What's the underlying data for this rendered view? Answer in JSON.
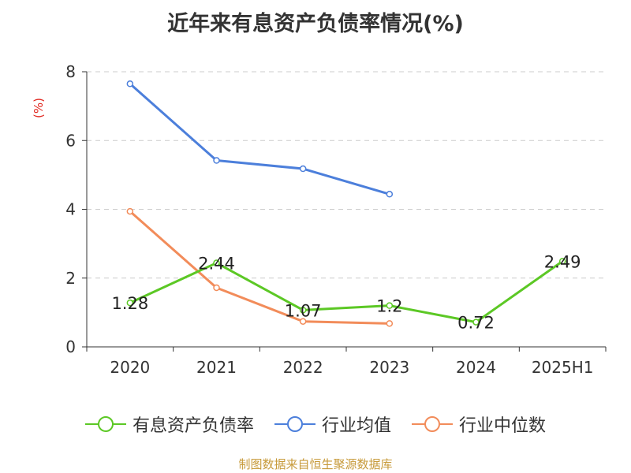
{
  "title": "近年来有息资产负债率情况(%)",
  "unit_label": "(%)",
  "source": "制图数据来自恒生聚源数据库",
  "chart_data": {
    "type": "line",
    "categories": [
      "2020",
      "2021",
      "2022",
      "2023",
      "2024",
      "2025H1"
    ],
    "ylim": [
      0,
      8
    ],
    "yticks": [
      0,
      2,
      4,
      6,
      8
    ],
    "grid": true,
    "legend_position": "bottom",
    "series": [
      {
        "name": "有息资产负债率",
        "color": "#5cc825",
        "values": [
          1.28,
          2.44,
          1.07,
          1.2,
          0.72,
          2.49
        ],
        "labels": [
          "1.28",
          "2.44",
          "1.07",
          "1.2",
          "0.72",
          "2.49"
        ]
      },
      {
        "name": "行业均值",
        "color": "#4c7fdb",
        "values": [
          7.65,
          5.42,
          5.18,
          4.44,
          null,
          null
        ]
      },
      {
        "name": "行业中位数",
        "color": "#f28c5a",
        "values": [
          3.94,
          1.72,
          0.74,
          0.68,
          null,
          null
        ]
      }
    ]
  }
}
